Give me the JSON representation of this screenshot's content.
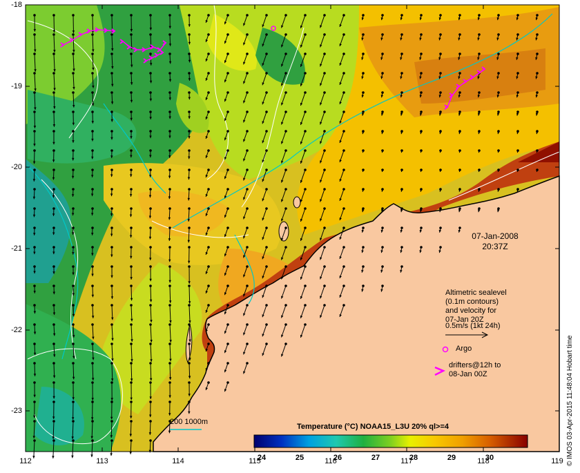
{
  "map": {
    "y_ticks": [
      "-18",
      "-19",
      "-20",
      "-21",
      "-22",
      "-23"
    ],
    "x_ticks": [
      "112",
      "113",
      "114",
      "115",
      "116",
      "117",
      "118",
      "119"
    ],
    "date": "07-Jan-2008",
    "time": "20:37Z",
    "legend": {
      "lines": [
        "Altimetric sealevel",
        "(0.1m contours)",
        "and velocity for",
        "07-Jan 20Z",
        "0.5m/s (1kt 24h)"
      ],
      "argo_label": "Argo",
      "drifters_lines": [
        "drifters@12h to",
        "08-Jan 00Z"
      ]
    },
    "depth_label": "200  1000m",
    "colorbar": {
      "title": "Temperature (°C) NOAA15_L3U 20% ql>=4",
      "ticks": [
        "24",
        "25",
        "26",
        "27",
        "28",
        "29",
        "30"
      ]
    },
    "credit": "© IMOS 03-Apr-2015 11:48:04 Hobart time",
    "colors": {
      "land": "#f9c8a0",
      "arrows": "#000000",
      "drifters": "#ff00ff",
      "contour_200": "#00c8c8",
      "sealevel_contours": "#ffffff"
    }
  }
}
